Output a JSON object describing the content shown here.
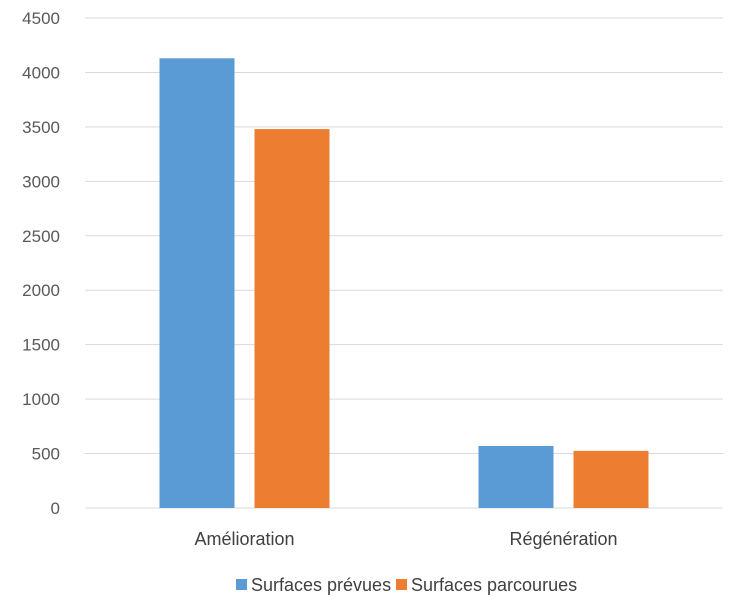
{
  "chart_data": {
    "type": "bar",
    "categories": [
      "Amélioration",
      "Régénération"
    ],
    "series": [
      {
        "name": "Surfaces prévues",
        "values": [
          4130,
          570
        ],
        "color": "#5B9BD5"
      },
      {
        "name": "Surfaces parcourues",
        "values": [
          3480,
          525
        ],
        "color": "#ED7D31"
      }
    ],
    "ylim": [
      0,
      4500
    ],
    "yticks": [
      0,
      500,
      1000,
      1500,
      2000,
      2500,
      3000,
      3500,
      4000,
      4500
    ],
    "grid": true,
    "legend_position": "bottom",
    "gridline_color": "#D9D9D9"
  }
}
